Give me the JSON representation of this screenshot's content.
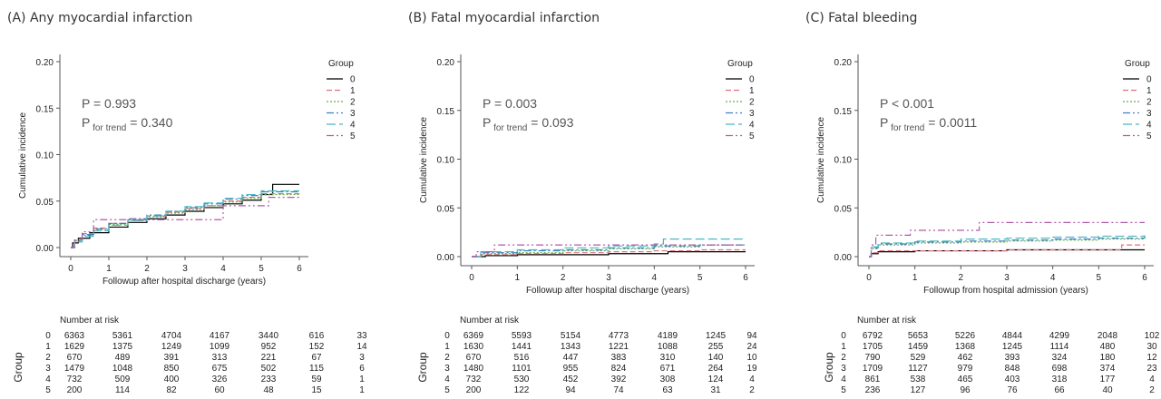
{
  "panels_meta": {
    "risk_title": "Number at risk",
    "group_axis_label": "Group",
    "legend_title": "Group",
    "ylabel": "Cumulative incidence"
  },
  "chart_data": [
    {
      "id": "A",
      "type": "line",
      "title": "(A) Any myocardial infarction",
      "xlabel": "Followup after hospital discharge (years)",
      "ylabel": "Cumulative incidence",
      "xlim": [
        0,
        6
      ],
      "ylim": [
        0,
        0.2
      ],
      "xticks": [
        "0",
        "1",
        "2",
        "3",
        "4",
        "5",
        "6"
      ],
      "yticks": [
        "0.00",
        "0.05",
        "0.10",
        "0.15",
        "0.20"
      ],
      "legend_title": "Group",
      "legend": [
        "0",
        "1",
        "2",
        "3",
        "4",
        "5"
      ],
      "p_value": "P = 0.993",
      "p_trend_label": "P",
      "p_trend_sub": "for trend",
      "p_trend_value": "= 0.340",
      "series": [
        {
          "name": "0",
          "color": "#000000",
          "dash": "",
          "x": [
            0,
            0.05,
            0.2,
            0.5,
            1,
            1.5,
            2,
            2.5,
            3,
            3.5,
            4,
            4.5,
            5,
            5.3,
            6
          ],
          "y": [
            0,
            0.005,
            0.01,
            0.016,
            0.022,
            0.027,
            0.031,
            0.035,
            0.039,
            0.043,
            0.047,
            0.051,
            0.057,
            0.068,
            0.068
          ]
        },
        {
          "name": "1",
          "color": "#e0707c",
          "dash": "6,3",
          "x": [
            0,
            0.1,
            0.3,
            0.6,
            1,
            1.5,
            2,
            2.5,
            3,
            3.5,
            4,
            4.5,
            5,
            6
          ],
          "y": [
            0,
            0.008,
            0.015,
            0.021,
            0.026,
            0.03,
            0.034,
            0.038,
            0.042,
            0.045,
            0.05,
            0.054,
            0.058,
            0.058
          ]
        },
        {
          "name": "2",
          "color": "#63b04a",
          "dash": "2,2",
          "x": [
            0,
            0.1,
            0.3,
            0.6,
            1,
            1.5,
            2,
            2.5,
            3,
            3.5,
            4,
            4.5,
            5,
            6
          ],
          "y": [
            0,
            0.007,
            0.013,
            0.019,
            0.025,
            0.029,
            0.033,
            0.037,
            0.041,
            0.045,
            0.049,
            0.053,
            0.057,
            0.057
          ]
        },
        {
          "name": "3",
          "color": "#3f7cc2",
          "dash": "8,3,2,3",
          "x": [
            0,
            0.1,
            0.3,
            0.6,
            1,
            1.5,
            2,
            2.5,
            3,
            3.5,
            4,
            4.5,
            5,
            6
          ],
          "y": [
            0,
            0.008,
            0.014,
            0.02,
            0.026,
            0.031,
            0.035,
            0.039,
            0.043,
            0.047,
            0.052,
            0.056,
            0.06,
            0.06
          ]
        },
        {
          "name": "4",
          "color": "#49b8c2",
          "dash": "10,4",
          "x": [
            0,
            0.1,
            0.3,
            0.6,
            1,
            1.5,
            2,
            2.5,
            3,
            3.5,
            4,
            4.5,
            5,
            6
          ],
          "y": [
            0,
            0.006,
            0.012,
            0.018,
            0.024,
            0.029,
            0.034,
            0.039,
            0.044,
            0.048,
            0.053,
            0.057,
            0.061,
            0.061
          ]
        },
        {
          "name": "5",
          "color": "#b15aa8",
          "dash": "8,3,2,3,2,3",
          "x": [
            0,
            0.1,
            0.3,
            0.6,
            1.2,
            2.3,
            3.6,
            4.0,
            5.2,
            6
          ],
          "y": [
            0,
            0.008,
            0.017,
            0.03,
            0.03,
            0.03,
            0.03,
            0.045,
            0.054,
            0.054
          ]
        }
      ],
      "risk_table": {
        "rows": [
          {
            "group": "0",
            "values": [
              "6363",
              "5361",
              "4704",
              "4167",
              "3440",
              "616",
              "33"
            ]
          },
          {
            "group": "1",
            "values": [
              "1629",
              "1375",
              "1249",
              "1099",
              "952",
              "152",
              "14"
            ]
          },
          {
            "group": "2",
            "values": [
              "670",
              "489",
              "391",
              "313",
              "221",
              "67",
              "3"
            ]
          },
          {
            "group": "3",
            "values": [
              "1479",
              "1048",
              "850",
              "675",
              "502",
              "115",
              "6"
            ]
          },
          {
            "group": "4",
            "values": [
              "732",
              "509",
              "400",
              "326",
              "233",
              "59",
              "1"
            ]
          },
          {
            "group": "5",
            "values": [
              "200",
              "114",
              "82",
              "60",
              "48",
              "15",
              "1"
            ]
          }
        ]
      }
    },
    {
      "id": "B",
      "type": "line",
      "title": "(B) Fatal myocardial infarction",
      "xlabel": "Followup after hospital discharge (years)",
      "ylabel": "Cumulative incidence",
      "xlim": [
        0,
        6
      ],
      "ylim": [
        0,
        0.2
      ],
      "xticks": [
        "0",
        "1",
        "2",
        "3",
        "4",
        "5",
        "6"
      ],
      "yticks": [
        "0.00",
        "0.05",
        "0.10",
        "0.15",
        "0.20"
      ],
      "legend_title": "Group",
      "legend": [
        "0",
        "1",
        "2",
        "3",
        "4",
        "5"
      ],
      "p_value": "P = 0.003",
      "p_trend_label": "P",
      "p_trend_sub": "for trend",
      "p_trend_value": "= 0.093",
      "series": [
        {
          "name": "0",
          "color": "#000000",
          "dash": "",
          "x": [
            0,
            0.3,
            1,
            2,
            3,
            4,
            4.3,
            5,
            6
          ],
          "y": [
            0,
            0.001,
            0.002,
            0.002,
            0.003,
            0.003,
            0.005,
            0.005,
            0.005
          ]
        },
        {
          "name": "1",
          "color": "#e0707c",
          "dash": "6,3",
          "x": [
            0,
            0.2,
            1,
            2,
            3,
            4,
            5,
            6
          ],
          "y": [
            0,
            0.002,
            0.003,
            0.004,
            0.005,
            0.006,
            0.007,
            0.007
          ]
        },
        {
          "name": "2",
          "color": "#63b04a",
          "dash": "2,2",
          "x": [
            0,
            0.2,
            1,
            2,
            3,
            4,
            5,
            6
          ],
          "y": [
            0,
            0.003,
            0.004,
            0.006,
            0.008,
            0.01,
            0.012,
            0.012
          ]
        },
        {
          "name": "3",
          "color": "#3f7cc2",
          "dash": "8,3,2,3",
          "x": [
            0,
            0.2,
            1,
            2,
            3,
            4,
            5,
            6
          ],
          "y": [
            0,
            0.004,
            0.006,
            0.007,
            0.009,
            0.011,
            0.012,
            0.012
          ]
        },
        {
          "name": "4",
          "color": "#49b8c2",
          "dash": "10,4",
          "x": [
            0,
            0.2,
            1,
            2,
            3,
            4,
            4.2,
            6
          ],
          "y": [
            0,
            0.005,
            0.007,
            0.009,
            0.011,
            0.013,
            0.018,
            0.018
          ]
        },
        {
          "name": "5",
          "color": "#b15aa8",
          "dash": "8,3,2,3,2,3",
          "x": [
            0,
            0.1,
            0.5,
            6
          ],
          "y": [
            0,
            0.005,
            0.012,
            0.012
          ]
        }
      ],
      "risk_table": {
        "rows": [
          {
            "group": "0",
            "values": [
              "6369",
              "5593",
              "5154",
              "4773",
              "4189",
              "1245",
              "94"
            ]
          },
          {
            "group": "1",
            "values": [
              "1630",
              "1441",
              "1343",
              "1221",
              "1088",
              "255",
              "24"
            ]
          },
          {
            "group": "2",
            "values": [
              "670",
              "516",
              "447",
              "383",
              "310",
              "140",
              "10"
            ]
          },
          {
            "group": "3",
            "values": [
              "1480",
              "1101",
              "955",
              "824",
              "671",
              "264",
              "19"
            ]
          },
          {
            "group": "4",
            "values": [
              "732",
              "530",
              "452",
              "392",
              "308",
              "124",
              "4"
            ]
          },
          {
            "group": "5",
            "values": [
              "200",
              "122",
              "94",
              "74",
              "63",
              "31",
              "2"
            ]
          }
        ]
      }
    },
    {
      "id": "C",
      "type": "line",
      "title": "(C) Fatal bleeding",
      "xlabel": "Followup from hospital admission (years)",
      "ylabel": "Cumulative incidence",
      "xlim": [
        0,
        6
      ],
      "ylim": [
        0,
        0.2
      ],
      "xticks": [
        "0",
        "1",
        "2",
        "3",
        "4",
        "5",
        "6"
      ],
      "yticks": [
        "0.00",
        "0.05",
        "0.10",
        "0.15",
        "0.20"
      ],
      "legend_title": "Group",
      "legend": [
        "0",
        "1",
        "2",
        "3",
        "4",
        "5"
      ],
      "p_value": "P < 0.001",
      "p_trend_label": "P",
      "p_trend_sub": "for trend",
      "p_trend_value": "= 0.0011",
      "series": [
        {
          "name": "0",
          "color": "#000000",
          "dash": "",
          "x": [
            0,
            0.05,
            0.2,
            1,
            2,
            3,
            4,
            5,
            6
          ],
          "y": [
            0,
            0.003,
            0.005,
            0.006,
            0.006,
            0.007,
            0.007,
            0.007,
            0.007
          ]
        },
        {
          "name": "1",
          "color": "#e0707c",
          "dash": "6,3",
          "x": [
            0,
            0.05,
            0.2,
            1,
            2,
            3,
            4,
            5,
            5.5,
            6
          ],
          "y": [
            0,
            0.004,
            0.006,
            0.006,
            0.006,
            0.007,
            0.007,
            0.007,
            0.012,
            0.012
          ]
        },
        {
          "name": "2",
          "color": "#63b04a",
          "dash": "2,2",
          "x": [
            0,
            0.05,
            0.2,
            1,
            2,
            3,
            4,
            5,
            6
          ],
          "y": [
            0,
            0.008,
            0.012,
            0.014,
            0.015,
            0.016,
            0.017,
            0.018,
            0.018
          ]
        },
        {
          "name": "3",
          "color": "#3f7cc2",
          "dash": "8,3,2,3",
          "x": [
            0,
            0.05,
            0.2,
            1,
            2,
            3,
            4,
            5,
            6
          ],
          "y": [
            0,
            0.009,
            0.013,
            0.015,
            0.016,
            0.017,
            0.018,
            0.019,
            0.021
          ]
        },
        {
          "name": "4",
          "color": "#49b8c2",
          "dash": "10,4",
          "x": [
            0,
            0.05,
            0.2,
            1,
            2,
            3,
            4,
            5,
            6
          ],
          "y": [
            0,
            0.01,
            0.014,
            0.016,
            0.018,
            0.019,
            0.02,
            0.021,
            0.022
          ]
        },
        {
          "name": "5",
          "color": "#b15aa8",
          "dash": "8,3,2,3,2,3",
          "x": [
            0,
            0.05,
            0.15,
            0.9,
            2.4,
            6
          ],
          "y": [
            0,
            0.012,
            0.022,
            0.027,
            0.035,
            0.035
          ]
        }
      ],
      "risk_table": {
        "rows": [
          {
            "group": "0",
            "values": [
              "6792",
              "5653",
              "5226",
              "4844",
              "4299",
              "2048",
              "102"
            ]
          },
          {
            "group": "1",
            "values": [
              "1705",
              "1459",
              "1368",
              "1245",
              "1114",
              "480",
              "30"
            ]
          },
          {
            "group": "2",
            "values": [
              "790",
              "529",
              "462",
              "393",
              "324",
              "180",
              "12"
            ]
          },
          {
            "group": "3",
            "values": [
              "1709",
              "1127",
              "979",
              "848",
              "698",
              "374",
              "23"
            ]
          },
          {
            "group": "4",
            "values": [
              "861",
              "538",
              "465",
              "403",
              "318",
              "177",
              "4"
            ]
          },
          {
            "group": "5",
            "values": [
              "236",
              "127",
              "96",
              "76",
              "66",
              "40",
              "2"
            ]
          }
        ]
      }
    }
  ]
}
